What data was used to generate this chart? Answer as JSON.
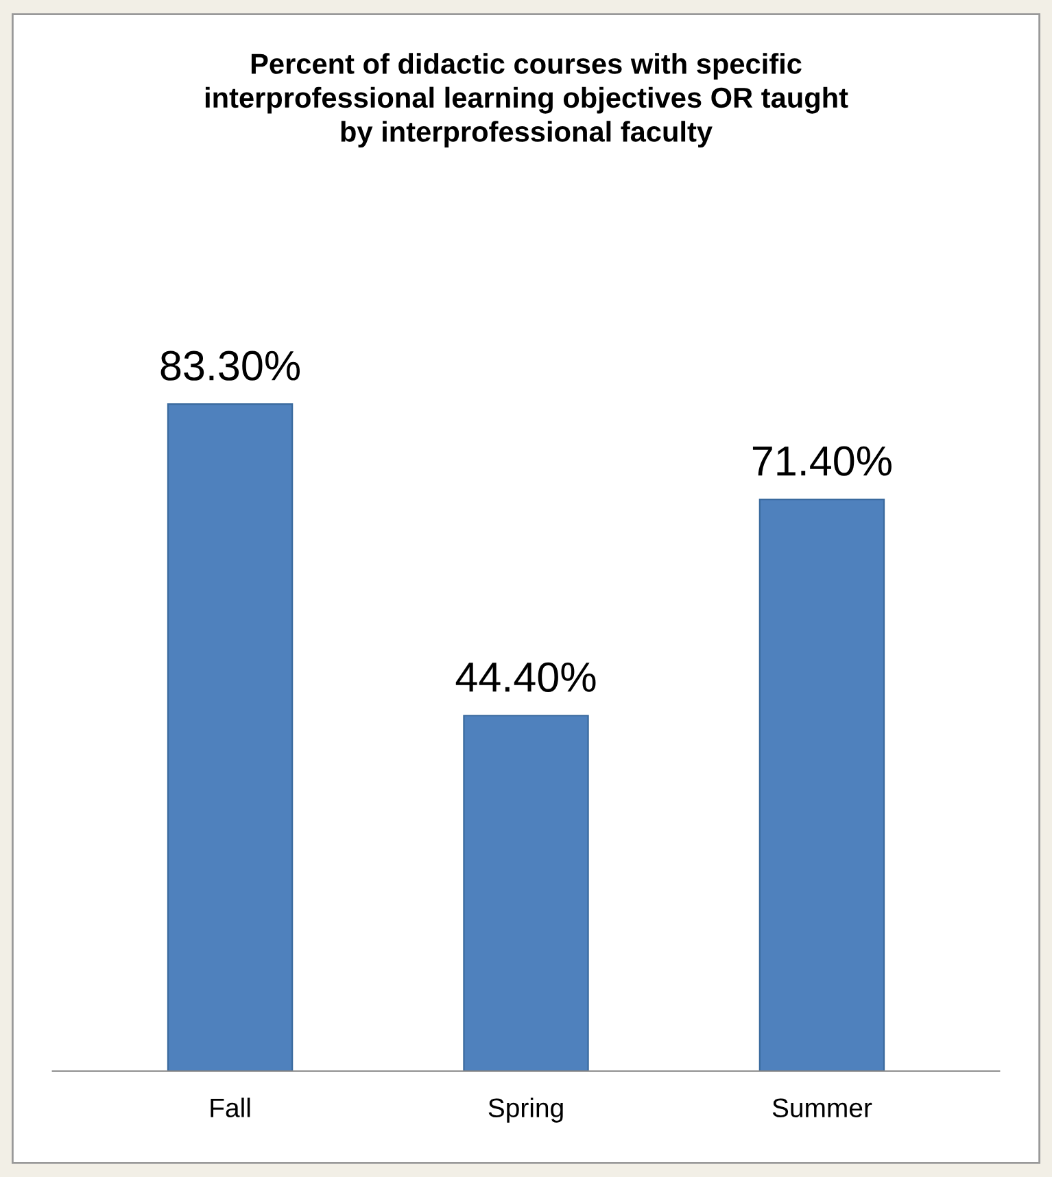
{
  "chart_data": {
    "type": "bar",
    "title": "Percent of didactic courses with specific\ninterprofessional learning objectives OR taught\nby interprofessional faculty",
    "categories": [
      "Fall",
      "Spring",
      "Summer"
    ],
    "values": [
      83.3,
      44.4,
      71.4
    ],
    "value_labels": [
      "83.30%",
      "44.40%",
      "71.40%"
    ],
    "color": "#4f81bd",
    "grid": false,
    "legend": false
  }
}
